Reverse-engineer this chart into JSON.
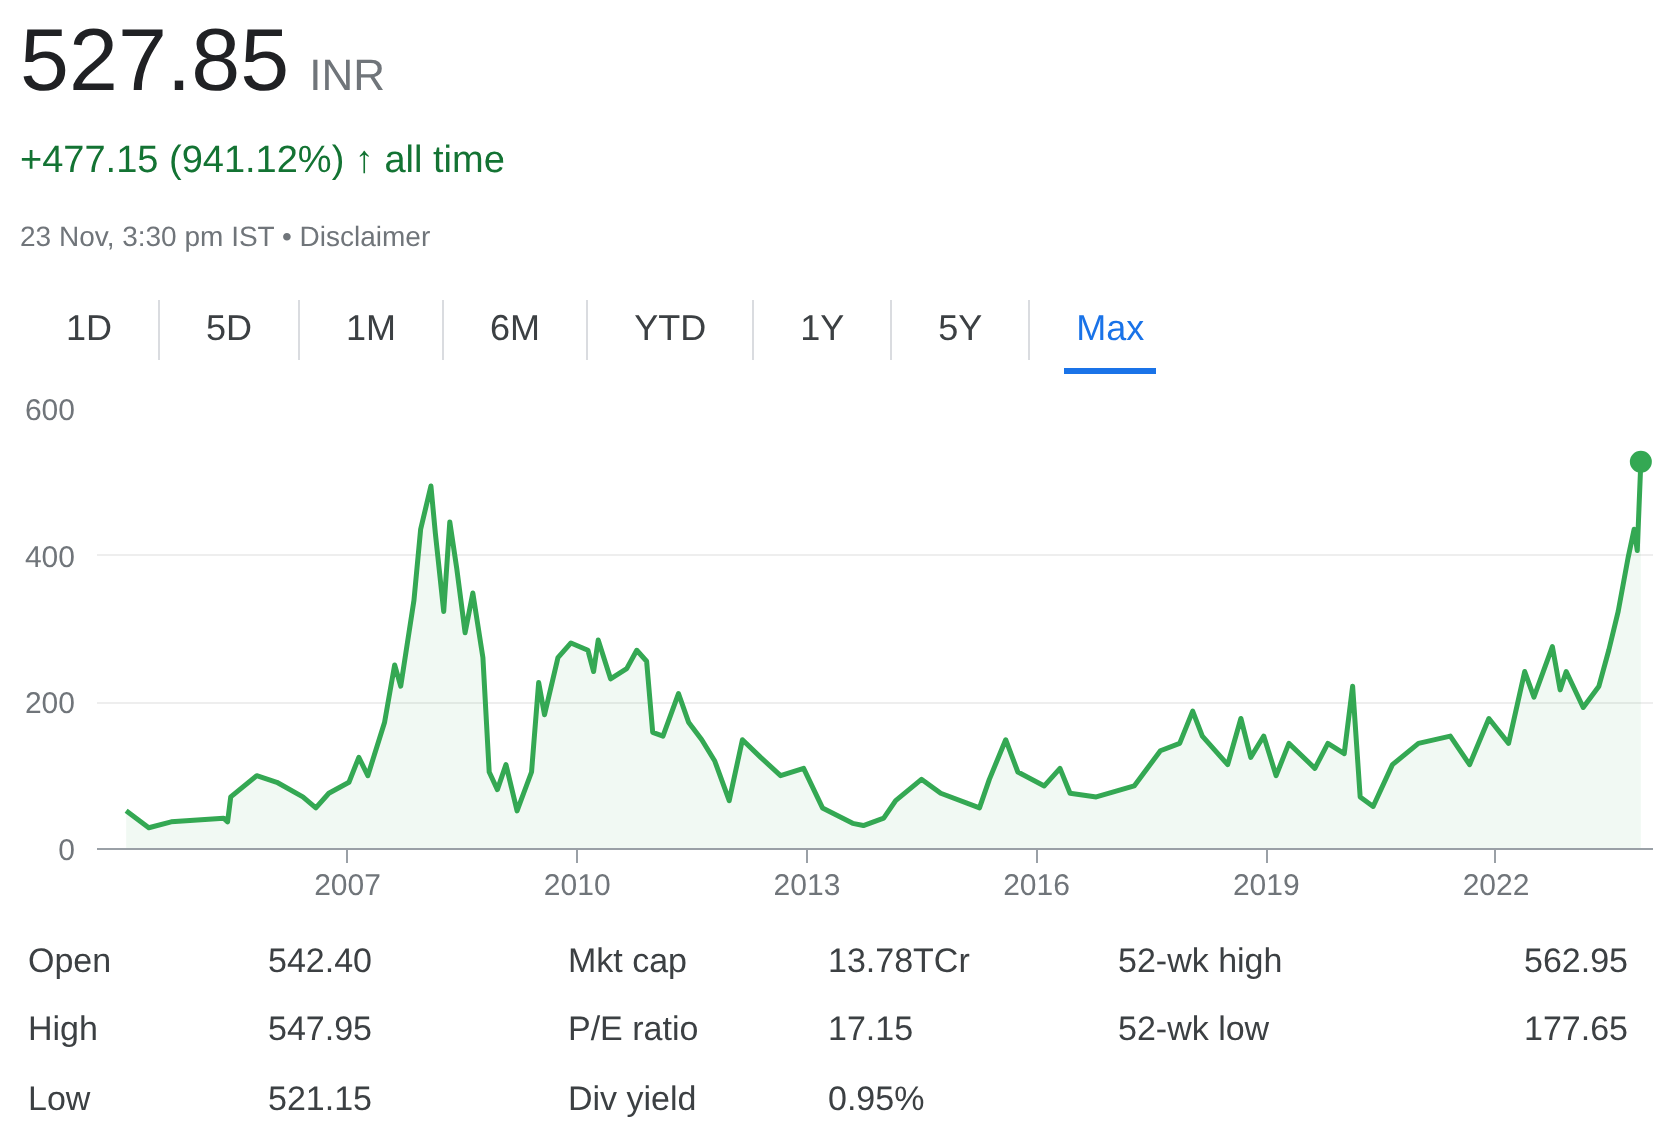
{
  "chart_data": {
    "type": "area",
    "title": "527.85",
    "annotations": [
      "INR",
      "+477.15 (941.12%) ↑ all time",
      "23 Nov, 3:30 pm IST • Disclaimer",
      "1D",
      "5D",
      "1M",
      "6M",
      "YTD",
      "1Y",
      "5Y",
      "Max",
      "Open",
      "542.40",
      "Mkt cap",
      "13.78TCr",
      "52-wk high",
      "562.95",
      "High",
      "547.95",
      "P/E ratio",
      "17.15",
      "52-wk low",
      "177.65",
      "Low",
      "521.15",
      "Div yield",
      "0.95%"
    ],
    "xlim": [
      "2003-09-24",
      "2024-01-20"
    ],
    "xticks": [
      "2007",
      "2010",
      "2013",
      "2016",
      "2019",
      "2022"
    ],
    "ylim": [
      0,
      600
    ],
    "yticks": [
      0,
      200,
      400,
      600
    ],
    "grid": "y",
    "series": [
      {
        "color": "#34a853",
        "x": [
          "2004-02-10",
          "2004-05-28",
          "2004-09-12",
          "2005-05-20",
          "2005-06-08",
          "2005-06-23",
          "2005-10-25",
          "2006-01-29",
          "2006-06-02",
          "2006-08-03",
          "2006-10-04",
          "2007-01-08",
          "2007-02-24",
          "2007-04-08",
          "2007-06-27",
          "2007-08-14",
          "2007-09-12",
          "2007-11-14",
          "2007-12-16",
          "2008-02-03",
          "2008-02-24",
          "2008-04-04",
          "2008-05-03",
          "2008-06-05",
          "2008-07-15",
          "2008-08-21",
          "2008-10-08",
          "2008-11-07",
          "2008-12-16",
          "2009-01-26",
          "2009-03-20",
          "2009-05-28",
          "2009-07-01",
          "2009-07-29",
          "2009-10-01",
          "2009-12-02",
          "2010-02-21",
          "2010-03-20",
          "2010-04-11",
          "2010-06-09",
          "2010-08-25",
          "2010-10-12",
          "2010-11-28",
          "2010-12-27",
          "2011-02-14",
          "2011-04-29",
          "2011-06-16",
          "2011-08-18",
          "2011-10-19",
          "2011-12-27",
          "2012-02-28",
          "2012-05-25",
          "2012-08-28",
          "2012-12-16",
          "2013-03-16",
          "2013-08-07",
          "2013-09-27",
          "2014-01-02",
          "2014-02-28",
          "2014-07-01",
          "2014-10-01",
          "2015-04-04",
          "2015-05-21",
          "2015-08-07",
          "2015-10-04",
          "2016-02-07",
          "2016-04-22",
          "2016-06-09",
          "2016-10-12",
          "2017-04-11",
          "2017-08-14",
          "2017-11-14",
          "2018-01-15",
          "2018-03-02",
          "2018-07-01",
          "2018-09-02",
          "2018-10-19",
          "2018-12-20",
          "2019-02-17",
          "2019-04-19",
          "2019-08-21",
          "2019-10-22",
          "2020-01-08",
          "2020-02-17",
          "2020-03-24",
          "2020-05-25",
          "2020-08-25",
          "2020-12-27",
          "2021-05-28",
          "2021-08-28",
          "2021-11-28",
          "2022-03-02",
          "2022-05-18",
          "2022-07-01",
          "2022-09-27",
          "2022-11-03",
          "2022-12-02",
          "2023-02-21",
          "2023-05-07",
          "2023-06-23",
          "2023-08-07",
          "2023-09-23",
          "2023-10-22",
          "2023-11-06",
          "2023-11-23"
        ],
        "values": [
          52,
          29,
          37,
          42,
          37,
          71,
          100,
          91,
          71,
          56,
          76,
          91,
          125,
          100,
          173,
          251,
          222,
          339,
          436,
          495,
          431,
          324,
          446,
          383,
          295,
          349,
          261,
          105,
          81,
          115,
          52,
          105,
          227,
          183,
          261,
          281,
          271,
          242,
          285,
          232,
          246,
          271,
          256,
          159,
          154,
          212,
          173,
          149,
          120,
          66,
          149,
          125,
          100,
          110,
          56,
          35,
          32,
          42,
          66,
          95,
          76,
          56,
          95,
          149,
          105,
          86,
          110,
          76,
          71,
          86,
          134,
          144,
          188,
          154,
          115,
          178,
          125,
          154,
          100,
          144,
          110,
          144,
          130,
          222,
          71,
          58,
          115,
          144,
          154,
          115,
          178,
          144,
          242,
          207,
          276,
          217,
          242,
          193,
          222,
          271,
          324,
          397,
          436,
          407,
          528
        ]
      },
      {
        "type": "scatter",
        "color": "#34a853",
        "x": [
          "2023-11-23"
        ],
        "values": [
          528
        ]
      }
    ]
  }
}
